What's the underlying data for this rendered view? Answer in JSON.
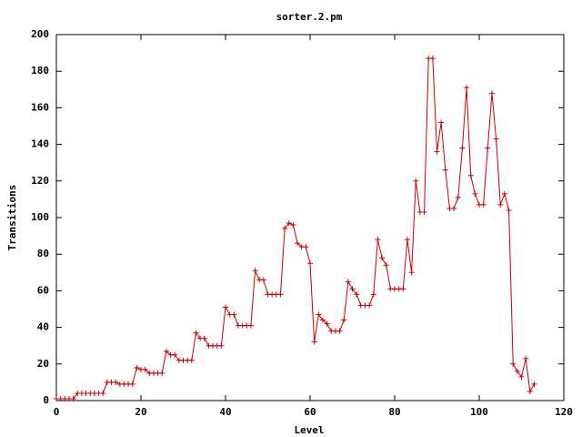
{
  "chart_data": {
    "type": "line",
    "title": "sorter.2.pm",
    "x_label": "Level",
    "y_label": "Transitions",
    "x": [
      0,
      1,
      2,
      3,
      4,
      5,
      6,
      7,
      8,
      9,
      10,
      11,
      12,
      13,
      14,
      15,
      16,
      17,
      18,
      19,
      20,
      21,
      22,
      23,
      24,
      25,
      26,
      27,
      28,
      29,
      30,
      31,
      32,
      33,
      34,
      35,
      36,
      37,
      38,
      39,
      40,
      41,
      42,
      43,
      44,
      45,
      46,
      47,
      48,
      49,
      50,
      51,
      52,
      53,
      54,
      55,
      56,
      57,
      58,
      59,
      60,
      61,
      62,
      63,
      64,
      65,
      66,
      67,
      68,
      69,
      70,
      71,
      72,
      73,
      74,
      75,
      76,
      77,
      78,
      79,
      80,
      81,
      82,
      83,
      84,
      85,
      86,
      87,
      88,
      89,
      90,
      91,
      92,
      93,
      94,
      95,
      96,
      97,
      98,
      99,
      100,
      101,
      102,
      103,
      104,
      105,
      106,
      107,
      108,
      109,
      110,
      111,
      112,
      113
    ],
    "series": [
      {
        "color": "#cc0000",
        "values": [
          1,
          1,
          1,
          1,
          1,
          4,
          4,
          4,
          4,
          4,
          4,
          4,
          10,
          10,
          10,
          9,
          9,
          9,
          9,
          18,
          17,
          17,
          15,
          15,
          15,
          15,
          27,
          25,
          25,
          22,
          22,
          22,
          22,
          37,
          34,
          34,
          30,
          30,
          30,
          30,
          51,
          47,
          47,
          41,
          41,
          41,
          41,
          71,
          66,
          66,
          58,
          58,
          58,
          58,
          94,
          97,
          96,
          86,
          84,
          84,
          75,
          32,
          47,
          44,
          42,
          38,
          38,
          38,
          44,
          65,
          61,
          58,
          52,
          52,
          52,
          58,
          88,
          78,
          74,
          61,
          61,
          61,
          61,
          88,
          70,
          120,
          103,
          103,
          187,
          187,
          136,
          152,
          126,
          105,
          105,
          111,
          138,
          171,
          123,
          113,
          107,
          107,
          138,
          168,
          143,
          107,
          113,
          104,
          20,
          16,
          13,
          23,
          5,
          9
        ]
      }
    ],
    "xlim": [
      0,
      120
    ],
    "xticks": [
      0,
      20,
      40,
      60,
      80,
      100,
      120
    ],
    "ylim": [
      0,
      200
    ],
    "yticks": [
      0,
      20,
      40,
      60,
      80,
      100,
      120,
      140,
      160,
      180,
      200
    ]
  }
}
